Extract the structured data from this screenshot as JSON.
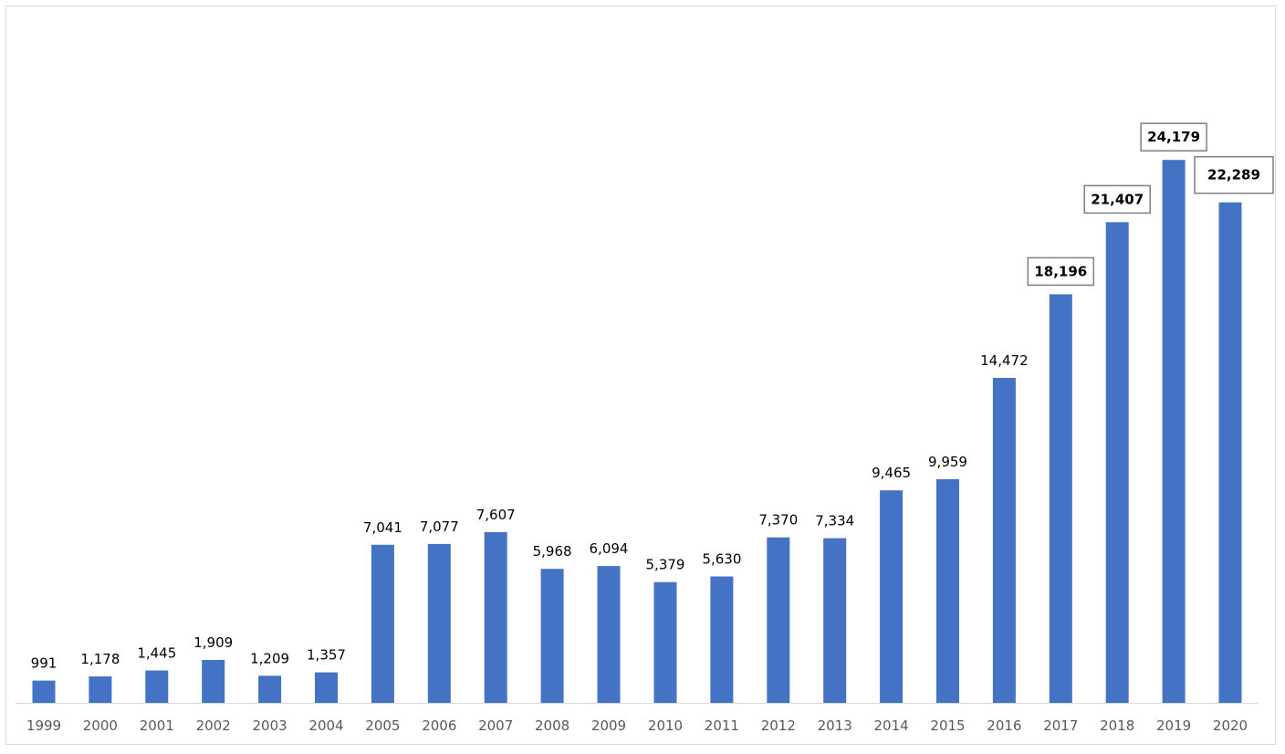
{
  "chart_data": {
    "type": "bar",
    "title": "",
    "xlabel": "",
    "ylabel": "",
    "ylim": [
      0,
      26500
    ],
    "grid": false,
    "legend": "none",
    "bar_color": "#4472C4",
    "categories": [
      "1999",
      "2000",
      "2001",
      "2002",
      "2003",
      "2004",
      "2005",
      "2006",
      "2007",
      "2008",
      "2009",
      "2010",
      "2011",
      "2012",
      "2013",
      "2014",
      "2015",
      "2016",
      "2017",
      "2018",
      "2019",
      "2020"
    ],
    "values": [
      991,
      1178,
      1445,
      1909,
      1209,
      1357,
      7041,
      7077,
      7607,
      5968,
      6094,
      5379,
      5630,
      7370,
      7334,
      9465,
      9959,
      14472,
      18196,
      21407,
      24179,
      22289
    ],
    "value_labels": [
      "991",
      "1,178",
      "1,445",
      "1,909",
      "1,209",
      "1,357",
      "7,041",
      "7,077",
      "7,607",
      "5,968",
      "6,094",
      "5,379",
      "5,630",
      "7,370",
      "7,334",
      "9,465",
      "9,959",
      "14,472",
      "18,196",
      "21,407",
      "24,179",
      "22,289"
    ],
    "boxed_labels": [
      "2017",
      "2018",
      "2019",
      "2020"
    ]
  }
}
